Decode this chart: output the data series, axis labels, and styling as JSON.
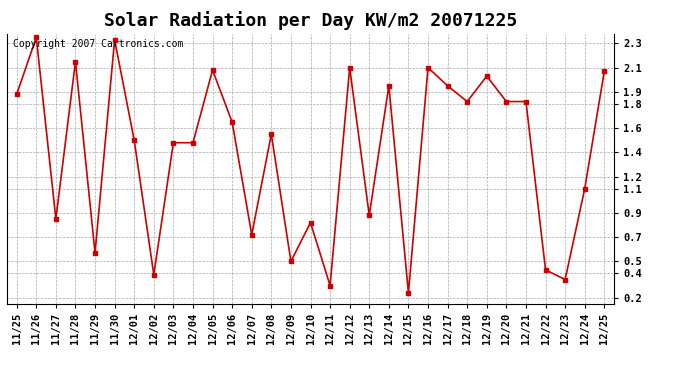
{
  "title": "Solar Radiation per Day KW/m2 20071225",
  "copyright_text": "Copyright 2007 Cartronics.com",
  "labels": [
    "11/25",
    "11/26",
    "11/27",
    "11/28",
    "11/29",
    "11/30",
    "12/01",
    "12/02",
    "12/03",
    "12/04",
    "12/05",
    "12/06",
    "12/07",
    "12/08",
    "12/09",
    "12/10",
    "12/11",
    "12/12",
    "12/13",
    "12/14",
    "12/15",
    "12/16",
    "12/17",
    "12/18",
    "12/19",
    "12/20",
    "12/21",
    "12/22",
    "12/23",
    "12/24",
    "12/25"
  ],
  "values": [
    1.88,
    2.35,
    0.85,
    2.15,
    0.57,
    2.33,
    1.5,
    0.39,
    1.48,
    1.48,
    2.08,
    1.65,
    0.72,
    1.55,
    0.5,
    0.82,
    0.3,
    2.1,
    0.88,
    1.95,
    0.24,
    2.1,
    1.95,
    1.82,
    2.03,
    1.82,
    1.82,
    0.43,
    0.35,
    1.1,
    2.07
  ],
  "line_color": "#cc0000",
  "marker": "s",
  "marker_size": 2.5,
  "line_width": 1.2,
  "ylim": [
    0.15,
    2.38
  ],
  "yticks": [
    0.2,
    0.4,
    0.5,
    0.7,
    0.9,
    1.1,
    1.2,
    1.4,
    1.6,
    1.8,
    1.9,
    2.1,
    2.3
  ],
  "ytick_labels": [
    "0.2",
    "0.4",
    "0.5",
    "0.7",
    "0.9",
    "1.1",
    "1.2",
    "1.4",
    "1.6",
    "1.8",
    "1.9",
    "2.1",
    "2.3"
  ],
  "bg_color": "#ffffff",
  "plot_bg_color": "#ffffff",
  "grid_color": "#aaaaaa",
  "title_fontsize": 13,
  "tick_fontsize": 7.5,
  "copyright_fontsize": 7
}
